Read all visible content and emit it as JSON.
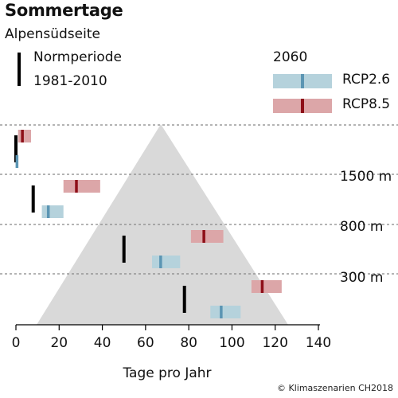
{
  "header": {
    "title": "Sommertage",
    "subtitle": "Alpensüdseite"
  },
  "legend": {
    "norm_line1": "Normperiode",
    "norm_line2": "1981-2010",
    "year": "2060",
    "rcp26_label": "RCP2.6",
    "rcp85_label": "RCP8.5"
  },
  "colors": {
    "rcp26_box": "#b5d2dc",
    "rcp26_median": "#5b95b3",
    "rcp85_box": "#dca6a8",
    "rcp85_median": "#8e0f18",
    "norm": "#000000",
    "mountain": "#d9d9d9"
  },
  "footer": {
    "copyright": "© Klimaszenarien CH2018"
  },
  "chart_data": {
    "type": "box-range",
    "xlabel": "Tage pro Jahr",
    "xlim": [
      0,
      140
    ],
    "xticks": [
      0,
      20,
      40,
      60,
      80,
      100,
      120,
      140
    ],
    "elevation_labels": [
      "1500 m",
      "800 m",
      "300 m"
    ],
    "series": [
      {
        "name": "Normperiode 1981-2010",
        "values": [
          0,
          8,
          50,
          78
        ]
      },
      {
        "name": "RCP2.6",
        "ranges": [
          [
            0,
            1
          ],
          [
            12,
            22
          ],
          [
            63,
            76
          ],
          [
            90,
            104
          ]
        ],
        "medians": [
          0.5,
          15,
          67,
          95
        ]
      },
      {
        "name": "RCP8.5",
        "ranges": [
          [
            1,
            7
          ],
          [
            22,
            39
          ],
          [
            81,
            96
          ],
          [
            109,
            123
          ]
        ],
        "medians": [
          3,
          28,
          87,
          114
        ]
      }
    ],
    "grid": true
  }
}
